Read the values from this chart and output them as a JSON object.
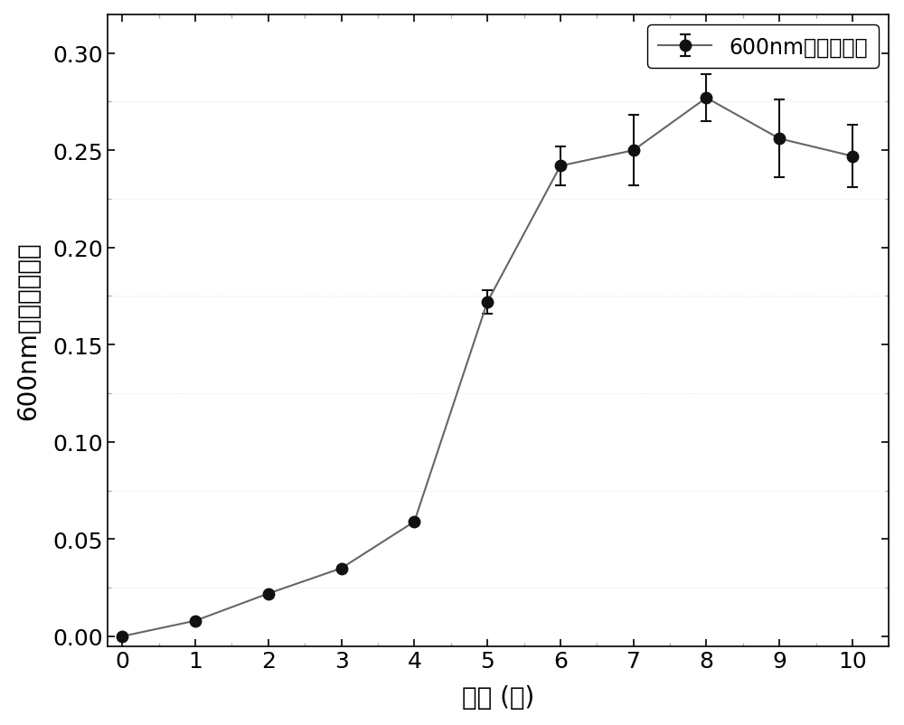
{
  "x": [
    0,
    1,
    2,
    3,
    4,
    5,
    6,
    7,
    8,
    9,
    10
  ],
  "y": [
    0.0,
    0.008,
    0.022,
    0.035,
    0.059,
    0.172,
    0.242,
    0.25,
    0.277,
    0.256,
    0.247
  ],
  "yerr": [
    0.0,
    0.0,
    0.0,
    0.0,
    0.0,
    0.006,
    0.01,
    0.018,
    0.012,
    0.02,
    0.016
  ],
  "line_color": "#666666",
  "marker_color": "#111111",
  "marker_size": 9,
  "line_width": 1.5,
  "xlabel": "时间 (天)",
  "ylabel": "600nm波长的吸光值",
  "legend_label": "600nm波长吸光值",
  "xlim": [
    -0.2,
    10.5
  ],
  "ylim": [
    -0.005,
    0.32
  ],
  "xticks": [
    0,
    1,
    2,
    3,
    4,
    5,
    6,
    7,
    8,
    9,
    10
  ],
  "yticks": [
    0.0,
    0.05,
    0.1,
    0.15,
    0.2,
    0.25,
    0.3
  ],
  "figsize": [
    10.0,
    8.03
  ],
  "dpi": 100,
  "capsize": 4,
  "elinewidth": 1.5,
  "capthick": 1.5,
  "background_color": "#ffffff"
}
